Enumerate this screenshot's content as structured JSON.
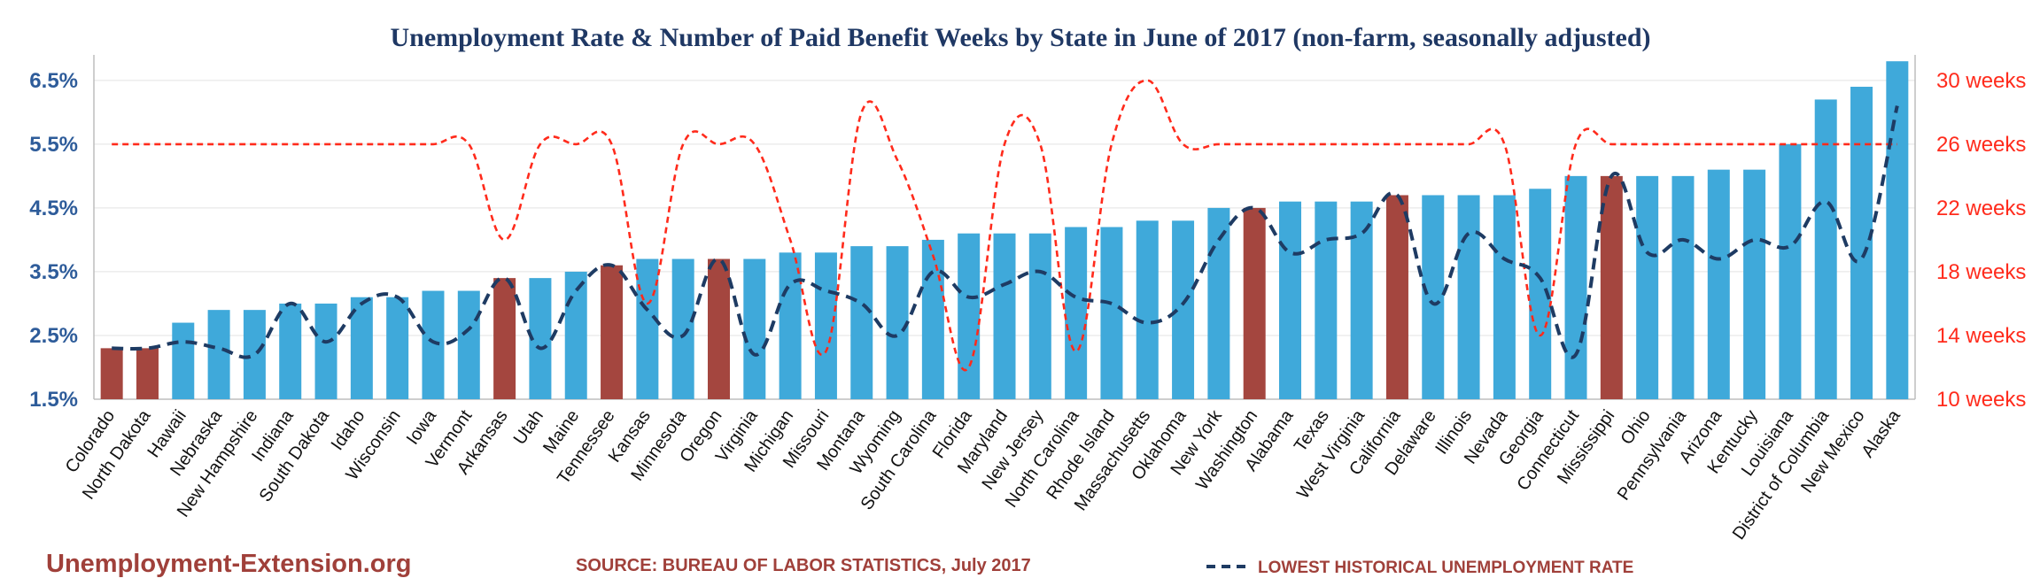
{
  "chart_data": {
    "type": "bar",
    "title": "Unemployment Rate & Number of Paid Benefit Weeks by State in June of 2017 (non-farm, seasonally adjusted)",
    "categories": [
      "Colorado",
      "North Dakota",
      "Hawaii",
      "Nebraska",
      "New Hampshire",
      "Indiana",
      "South Dakota",
      "Idaho",
      "Wisconsin",
      "Iowa",
      "Vermont",
      "Arkansas",
      "Utah",
      "Maine",
      "Tennessee",
      "Kansas",
      "Minnesota",
      "Oregon",
      "Virginia",
      "Michigan",
      "Missouri",
      "Montana",
      "Wyoming",
      "South Carolina",
      "Florida",
      "Maryland",
      "New Jersey",
      "North Carolina",
      "Rhode Island",
      "Massachusetts",
      "Oklahoma",
      "New York",
      "Washington",
      "Alabama",
      "Texas",
      "West Virginia",
      "California",
      "Delaware",
      "Illinois",
      "Nevada",
      "Georgia",
      "Connecticut",
      "Mississippi",
      "Ohio",
      "Pennsylvania",
      "Arizona",
      "Kentucky",
      "Louisiana",
      "District of Columbia",
      "New Mexico",
      "Alaska"
    ],
    "series": [
      {
        "name": "Unemployment Rate",
        "axis": "left",
        "type": "bar",
        "values": [
          2.3,
          2.3,
          2.7,
          2.9,
          2.9,
          3.0,
          3.0,
          3.1,
          3.1,
          3.2,
          3.2,
          3.4,
          3.4,
          3.5,
          3.6,
          3.7,
          3.7,
          3.7,
          3.7,
          3.8,
          3.8,
          3.9,
          3.9,
          4.0,
          4.1,
          4.1,
          4.1,
          4.2,
          4.2,
          4.3,
          4.3,
          4.5,
          4.5,
          4.6,
          4.6,
          4.6,
          4.7,
          4.7,
          4.7,
          4.7,
          4.8,
          5.0,
          5.0,
          5.0,
          5.0,
          5.1,
          5.1,
          5.5,
          6.2,
          6.4,
          6.8
        ],
        "highlighted": [
          true,
          true,
          false,
          false,
          false,
          false,
          false,
          false,
          false,
          false,
          false,
          true,
          false,
          false,
          true,
          false,
          false,
          true,
          false,
          false,
          false,
          false,
          false,
          false,
          false,
          false,
          false,
          false,
          false,
          false,
          false,
          false,
          true,
          false,
          false,
          false,
          true,
          false,
          false,
          false,
          false,
          false,
          true,
          false,
          false,
          false,
          false,
          false,
          false,
          false,
          false
        ],
        "color": "#3fa9da",
        "highlight_color": "#a4463f"
      },
      {
        "name": "Lowest Historical Unemployment Rate",
        "axis": "left",
        "type": "line",
        "style": "dashed",
        "color": "#1e3b63",
        "values": [
          2.3,
          2.3,
          2.4,
          2.3,
          2.2,
          3.0,
          2.4,
          3.0,
          3.1,
          2.4,
          2.6,
          3.4,
          2.3,
          3.2,
          3.6,
          2.9,
          2.5,
          3.7,
          2.2,
          3.3,
          3.2,
          3.0,
          2.5,
          3.5,
          3.1,
          3.3,
          3.5,
          3.1,
          3.0,
          2.7,
          3.0,
          4.0,
          4.5,
          3.8,
          4.0,
          4.1,
          4.7,
          3.0,
          4.1,
          3.7,
          3.4,
          2.2,
          5.0,
          3.8,
          4.0,
          3.7,
          4.0,
          3.9,
          4.6,
          3.7,
          6.1
        ]
      },
      {
        "name": "Number of Paid Benefit Weeks",
        "axis": "right",
        "type": "line",
        "style": "dashed",
        "color": "#ff2b1c",
        "values": [
          26,
          26,
          26,
          26,
          26,
          26,
          26,
          26,
          26,
          26,
          26,
          20,
          26,
          26,
          26,
          16,
          26,
          26,
          26,
          20,
          13,
          28,
          25,
          19,
          12,
          26,
          26,
          13,
          26,
          30,
          26,
          26,
          26,
          26,
          26,
          26,
          26,
          26,
          26,
          26,
          14,
          26,
          26,
          26,
          26,
          26,
          26,
          26,
          26,
          26,
          26
        ]
      }
    ],
    "ylim": [
      1.5,
      6.9
    ],
    "yticks": [
      "1.5%",
      "2.5%",
      "3.5%",
      "4.5%",
      "5.5%",
      "6.5%"
    ],
    "ytick_values": [
      1.5,
      2.5,
      3.5,
      4.5,
      5.5,
      6.5
    ],
    "y2lim": [
      10,
      31.6
    ],
    "y2ticks": [
      "10 weeks",
      "14 weeks",
      "18 weeks",
      "22 weeks",
      "26 weeks",
      "30 weeks"
    ],
    "y2tick_values": [
      10,
      14,
      18,
      22,
      26,
      30
    ],
    "xlabel": "",
    "ylabel": "",
    "grid": true
  },
  "footer": {
    "brand": "Unemployment-Extension.org",
    "source": "SOURCE: BUREAU OF LABOR STATISTICS, July 2017",
    "legend_label": "LOWEST HISTORICAL UNEMPLOYMENT RATE"
  },
  "colors": {
    "bar": "#3fa9da",
    "bar_highlight": "#a4463f",
    "low_line": "#1e3b63",
    "weeks_line": "#ff2b1c",
    "title": "#1f3864"
  }
}
